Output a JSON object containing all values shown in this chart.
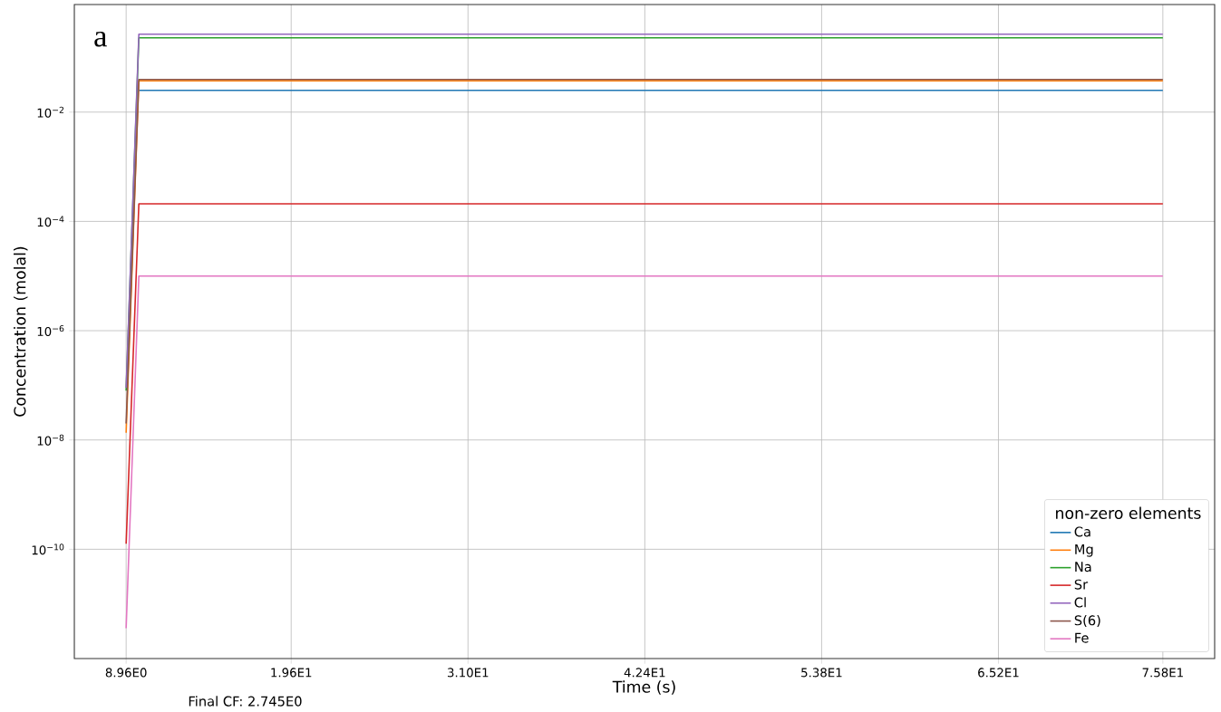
{
  "chart_data": {
    "type": "line",
    "xlabel": "Time (s)",
    "ylabel": "Concentration (molal)",
    "legend_title": "non-zero elements",
    "annotations": [
      "a",
      "Final CF: 2.745E0"
    ],
    "log": "y",
    "grid": true,
    "legend": "bottom right",
    "marker": "none",
    "line_style": "solid",
    "xlim": [
      5.62,
      79.14
    ],
    "ylim": [
      1e-12,
      0.93
    ],
    "xticks": [
      {
        "value": 8.96,
        "label": "8.96E0"
      },
      {
        "value": 19.6,
        "label": "1.96E1"
      },
      {
        "value": 31.0,
        "label": "3.10E1"
      },
      {
        "value": 42.4,
        "label": "4.24E1"
      },
      {
        "value": 53.8,
        "label": "5.38E1"
      },
      {
        "value": 65.2,
        "label": "6.52E1"
      },
      {
        "value": 75.8,
        "label": "7.58E1"
      }
    ],
    "yticks": [
      {
        "value": 1e-10,
        "label": "10$^{−10}$"
      },
      {
        "value": 1e-08,
        "label": "10$^{−8}$"
      },
      {
        "value": 1e-06,
        "label": "10$^{−6}$"
      },
      {
        "value": 0.0001,
        "label": "10$^{−4}$"
      },
      {
        "value": 0.01,
        "label": "10$^{−2}$"
      }
    ],
    "x": [
      8.96,
      9.78,
      75.8
    ],
    "series": [
      {
        "name": "Ca",
        "color": "#1f77b4",
        "values": [
          null,
          0.025,
          0.025
        ]
      },
      {
        "name": "Mg",
        "color": "#ff7f0e",
        "values": [
          1.35e-08,
          0.0375,
          0.0375
        ]
      },
      {
        "name": "Na",
        "color": "#2ca02c",
        "values": [
          8e-08,
          0.229,
          0.229
        ]
      },
      {
        "name": "Sr",
        "color": "#d62728",
        "values": [
          1.26e-10,
          0.00021,
          0.00021
        ]
      },
      {
        "name": "Cl",
        "color": "#9467bd",
        "values": [
          9e-08,
          0.267,
          0.267
        ]
      },
      {
        "name": "S(6)",
        "color": "#8c564b",
        "values": [
          2e-08,
          0.0395,
          0.0395
        ]
      },
      {
        "name": "Fe",
        "color": "#e377c2",
        "values": [
          3.6e-12,
          1e-05,
          1e-05
        ]
      }
    ]
  }
}
